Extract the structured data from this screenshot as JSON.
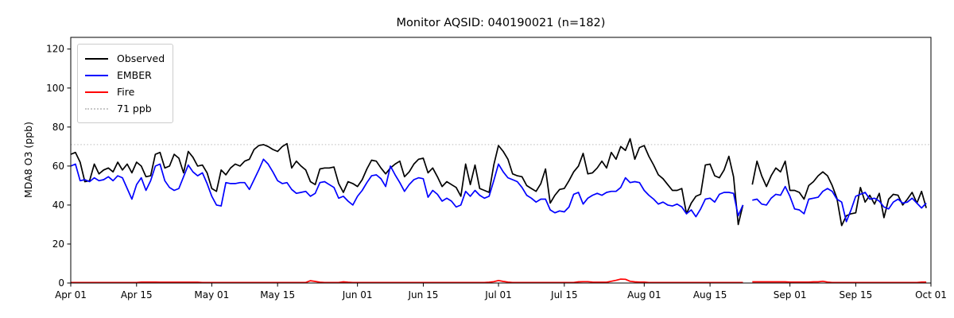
{
  "title": "Monitor AQSID: 040190021 (n=182)",
  "chart_data": {
    "type": "line",
    "title": "Monitor AQSID: 040190021 (n=182)",
    "xlabel": "",
    "ylabel": "MDA8 O3 (ppb)",
    "ylim": [
      0,
      126
    ],
    "y_ticks": [
      0,
      20,
      40,
      60,
      80,
      100,
      120
    ],
    "x_span_days": 183,
    "x_start_label": "Apr 01",
    "x_tick_days": [
      0,
      14,
      30,
      44,
      61,
      75,
      91,
      105,
      122,
      136,
      153,
      167,
      183
    ],
    "x_tick_labels": [
      "Apr 01",
      "Apr 15",
      "May 01",
      "May 15",
      "Jun 01",
      "Jun 15",
      "Jul 01",
      "Jul 15",
      "Aug 01",
      "Aug 15",
      "Sep 01",
      "Sep 15",
      "Oct 01"
    ],
    "grid": false,
    "note_missing_day": "Aug 23 (single missing daily value -> n=182, visible gap in all lines)",
    "threshold": {
      "value": 71,
      "label": "71 ppb",
      "color": "#c8c8c8",
      "style": "dotted"
    },
    "legend": {
      "position": "upper-left",
      "entries": [
        {
          "label": "Observed",
          "color": "#000000",
          "dash": "solid"
        },
        {
          "label": "EMBER",
          "color": "#0000ff",
          "dash": "solid"
        },
        {
          "label": "Fire",
          "color": "#ff0000",
          "dash": "solid"
        },
        {
          "label": "71 ppb",
          "color": "#c8c8c8",
          "dash": "dotted"
        }
      ]
    },
    "series": [
      {
        "name": "Observed",
        "color": "#000000",
        "values": [
          66,
          67,
          62,
          52,
          52.5,
          61,
          56,
          58,
          59,
          57,
          62,
          58,
          61,
          56.5,
          62,
          60,
          54.5,
          55,
          66,
          67,
          59,
          60,
          66,
          64,
          56.5,
          67.5,
          64.5,
          60,
          60.5,
          56.5,
          48.5,
          47,
          58,
          55.5,
          59,
          61,
          60,
          62.5,
          63.5,
          68.5,
          70.5,
          71,
          70,
          68.5,
          67.5,
          70,
          71.5,
          59,
          62.5,
          60,
          58,
          52,
          50.5,
          58.5,
          59,
          59,
          59.5,
          51,
          46.5,
          52,
          51,
          49.5,
          53,
          58.5,
          63,
          62.5,
          59,
          56,
          59,
          61,
          62.5,
          54.5,
          57,
          61,
          63.5,
          64,
          56.5,
          59,
          54.5,
          49.5,
          52,
          50.5,
          49,
          44.5,
          61,
          50.5,
          60.5,
          48.5,
          47.5,
          46.5,
          60.5,
          70.5,
          67.5,
          63.5,
          56,
          55,
          54.5,
          50,
          48.5,
          47,
          51,
          58.5,
          41,
          45,
          48,
          48.5,
          52.5,
          57,
          60,
          66.5,
          56,
          56.5,
          59,
          62.5,
          59,
          67,
          63.5,
          70,
          68,
          74,
          63.5,
          69.5,
          70.5,
          65,
          60.5,
          55.5,
          53.5,
          50.5,
          47.5,
          47.5,
          48.5,
          35.5,
          41,
          44.5,
          45.5,
          60.5,
          61,
          55,
          54,
          58,
          65,
          54.5,
          30,
          40,
          null,
          50.5,
          62.5,
          55,
          49.5,
          55,
          59,
          57,
          62.5,
          47.5,
          47.5,
          46.5,
          43,
          50,
          52,
          55,
          57,
          55,
          50,
          43.5,
          29.5,
          34.5,
          35.5,
          36,
          49,
          41.5,
          45,
          40.5,
          46,
          33.5,
          43,
          45.5,
          45,
          40,
          43,
          46.5,
          41,
          47,
          38.5
        ]
      },
      {
        "name": "EMBER",
        "color": "#0000ff",
        "values": [
          60,
          61,
          52.5,
          53,
          52,
          54,
          52.5,
          53,
          54.5,
          52.5,
          55,
          54,
          48.5,
          43,
          50.5,
          54,
          47.5,
          52.5,
          60,
          61,
          52.5,
          49,
          47.5,
          48.5,
          54.5,
          60.5,
          57,
          55,
          56.5,
          51,
          44.5,
          40,
          39.5,
          51.5,
          51,
          51,
          51.5,
          51.5,
          48,
          53,
          58,
          63.5,
          61,
          57,
          52.5,
          51,
          51.5,
          48,
          46,
          46.5,
          47,
          44.5,
          46,
          51.5,
          52,
          50.5,
          49,
          43.5,
          44.5,
          42,
          40,
          44.5,
          47.5,
          51.5,
          55,
          55.5,
          53.5,
          49.5,
          60,
          55.5,
          51.5,
          47,
          50.5,
          53,
          54,
          53.5,
          44,
          47.5,
          45.5,
          42,
          43.5,
          42,
          39,
          40,
          47,
          44.5,
          47.5,
          45,
          43.5,
          44.5,
          52.5,
          61,
          57,
          54,
          53,
          52,
          49,
          45,
          43.5,
          41.5,
          43,
          43,
          37.5,
          36,
          37,
          36.5,
          39,
          45.5,
          46.5,
          40.5,
          43.5,
          45,
          46,
          45,
          46.5,
          47,
          47,
          49,
          54,
          51.5,
          52,
          51.5,
          47.5,
          45,
          43,
          40.5,
          41.5,
          40,
          39.5,
          40.5,
          39,
          35.5,
          37.5,
          34,
          38,
          43,
          43.5,
          41.5,
          45.5,
          46.5,
          46.5,
          46,
          34.5,
          40,
          null,
          42.5,
          43,
          40.5,
          40,
          43.5,
          45.5,
          45,
          49.5,
          44.5,
          38,
          37.5,
          35.5,
          43,
          43.5,
          44,
          47,
          48.5,
          47,
          43,
          41.5,
          31.5,
          37.5,
          44.5,
          45.5,
          46.5,
          43,
          43.5,
          42,
          39,
          38,
          41.5,
          43,
          41,
          41.5,
          43.5,
          41,
          38.5,
          41
        ]
      },
      {
        "name": "Fire",
        "color": "#ff0000",
        "values": [
          0.3,
          0.3,
          0.3,
          0.3,
          0.3,
          0.3,
          0.3,
          0.3,
          0.3,
          0.3,
          0.3,
          0.3,
          0.3,
          0.3,
          0.3,
          0.5,
          0.5,
          0.5,
          0.5,
          0.4,
          0.4,
          0.4,
          0.4,
          0.4,
          0.4,
          0.4,
          0.4,
          0.4,
          0.3,
          0.3,
          0.3,
          0.3,
          0.3,
          0.3,
          0.3,
          0.3,
          0.3,
          0.3,
          0.3,
          0.3,
          0.3,
          0.3,
          0.3,
          0.3,
          0.3,
          0.3,
          0.3,
          0.3,
          0.3,
          0.3,
          0.3,
          1.2,
          0.8,
          0.4,
          0.3,
          0.3,
          0.3,
          0.3,
          0.6,
          0.4,
          0.3,
          0.3,
          0.3,
          0.3,
          0.3,
          0.3,
          0.3,
          0.3,
          0.3,
          0.3,
          0.3,
          0.3,
          0.3,
          0.3,
          0.3,
          0.3,
          0.3,
          0.3,
          0.3,
          0.3,
          0.3,
          0.3,
          0.3,
          0.3,
          0.3,
          0.3,
          0.3,
          0.3,
          0.3,
          0.4,
          0.7,
          1.3,
          0.8,
          0.5,
          0.3,
          0.3,
          0.3,
          0.3,
          0.3,
          0.3,
          0.3,
          0.3,
          0.3,
          0.3,
          0.3,
          0.3,
          0.3,
          0.3,
          0.6,
          0.7,
          0.7,
          0.5,
          0.4,
          0.4,
          0.4,
          0.9,
          1.4,
          2.0,
          1.9,
          0.9,
          0.6,
          0.5,
          0.5,
          0.3,
          0.3,
          0.3,
          0.3,
          0.3,
          0.3,
          0.3,
          0.3,
          0.3,
          0.3,
          0.3,
          0.3,
          0.3,
          0.3,
          0.3,
          0.3,
          0.3,
          0.3,
          0.3,
          0.3,
          0.3,
          null,
          0.6,
          0.6,
          0.6,
          0.6,
          0.6,
          0.6,
          0.6,
          0.6,
          0.5,
          0.5,
          0.5,
          0.5,
          0.5,
          0.6,
          0.6,
          0.9,
          0.5,
          0.3,
          0.3,
          0.3,
          0.3,
          0.3,
          0.3,
          0.3,
          0.3,
          0.3,
          0.3,
          0.3,
          0.3,
          0.3,
          0.3,
          0.3,
          0.3,
          0.3,
          0.3,
          0.3,
          0.5,
          0.5
        ]
      }
    ]
  },
  "colors": {
    "background": "#ffffff",
    "spine": "#000000",
    "tick_text": "#000000",
    "threshold": "#c8c8c8"
  }
}
